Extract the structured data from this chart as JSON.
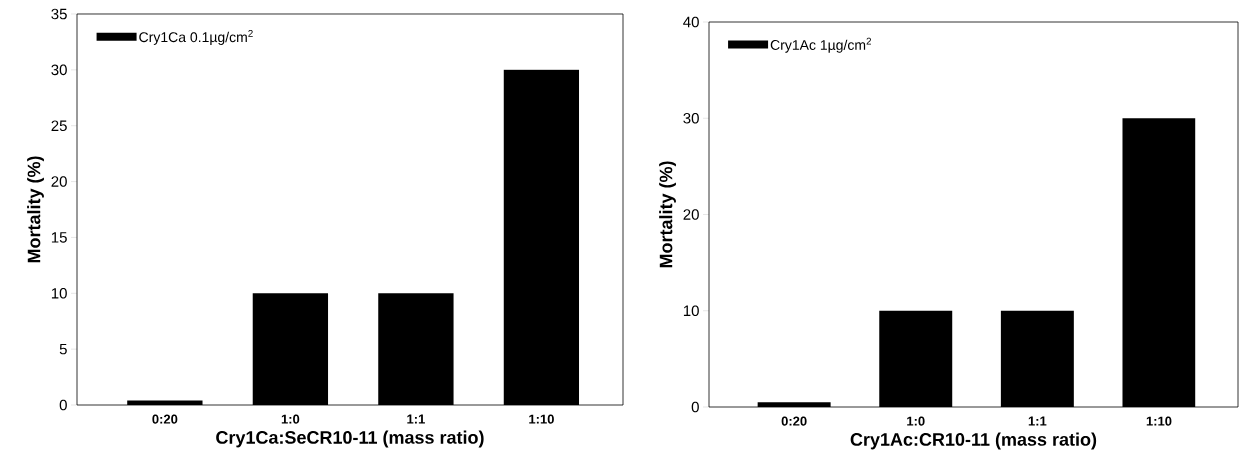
{
  "chart_data": [
    {
      "type": "bar",
      "categories": [
        "0:20",
        "1:0",
        "1:1",
        "1:10"
      ],
      "series": [
        {
          "name": "Cry1Ca 0.1µg/cm$^{2}$",
          "color": "#000000",
          "values": [
            0.4,
            10,
            10,
            30
          ]
        }
      ],
      "xlabel": "Cry1Ca:SeCR10-11 (mass ratio)",
      "ylabel": "Mortality (%)",
      "ylim": [
        0,
        35
      ],
      "yticks": [
        0,
        5,
        10,
        15,
        20,
        25,
        30,
        35
      ],
      "legend": "top left"
    },
    {
      "type": "bar",
      "categories": [
        "0:20",
        "1:0",
        "1:1",
        "1:10"
      ],
      "series": [
        {
          "name": "Cry1Ac 1µg/cm$^{2}$",
          "color": "#000000",
          "values": [
            0.5,
            10,
            10,
            30
          ]
        }
      ],
      "xlabel": "Cry1Ac:CR10-11 (mass ratio)",
      "ylabel": "Mortality (%)",
      "ylim": [
        0,
        40
      ],
      "yticks": [
        0,
        10,
        20,
        30,
        40
      ],
      "legend": "top left"
    }
  ]
}
